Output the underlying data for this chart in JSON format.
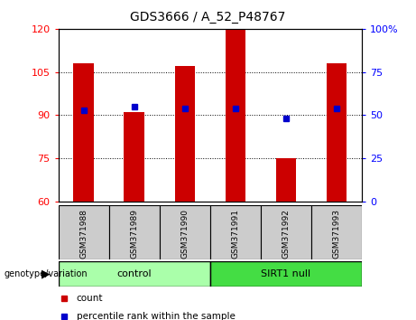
{
  "title": "GDS3666 / A_52_P48767",
  "samples": [
    "GSM371988",
    "GSM371989",
    "GSM371990",
    "GSM371991",
    "GSM371992",
    "GSM371993"
  ],
  "bar_values": [
    108,
    91,
    107,
    120,
    75,
    108
  ],
  "percentile_values": [
    53,
    55,
    54,
    54,
    48,
    54
  ],
  "ylim_left": [
    60,
    120
  ],
  "ylim_right": [
    0,
    100
  ],
  "yticks_left": [
    60,
    75,
    90,
    105,
    120
  ],
  "yticks_right": [
    0,
    25,
    50,
    75,
    100
  ],
  "bar_color": "#cc0000",
  "dot_color": "#0000cc",
  "groups": [
    {
      "label": "control",
      "start": 0,
      "end": 3,
      "color": "#aaffaa"
    },
    {
      "label": "SIRT1 null",
      "start": 3,
      "end": 6,
      "color": "#44dd44"
    }
  ],
  "genotype_label": "genotype/variation",
  "legend_count_label": "count",
  "legend_pct_label": "percentile rank within the sample",
  "bar_width": 0.4,
  "label_area_color": "#cccccc"
}
